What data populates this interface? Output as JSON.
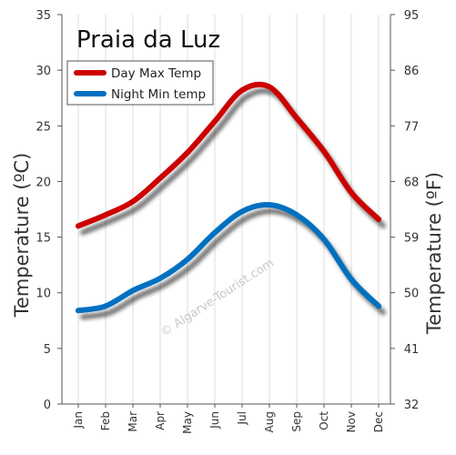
{
  "chart_data": {
    "type": "line",
    "title": "Praia da Luz",
    "categories": [
      "Jan",
      "Feb",
      "Mar",
      "Apr",
      "May",
      "Jun",
      "Jul",
      "Aug",
      "Sep",
      "Oct",
      "Nov",
      "Dec"
    ],
    "series": [
      {
        "name": "Day Max Temp",
        "color": "#cc0000",
        "values": [
          16,
          17,
          18.2,
          20.3,
          22.6,
          25.4,
          28.2,
          28.5,
          25.7,
          22.7,
          19,
          16.6
        ]
      },
      {
        "name": "Night Min temp",
        "color": "#0070c0",
        "values": [
          8.4,
          8.8,
          10.2,
          11.3,
          13,
          15.4,
          17.3,
          17.9,
          17,
          14.8,
          11.2,
          8.8
        ]
      }
    ],
    "ylabel": "Temperature   (ºC)",
    "ylim": [
      0,
      35
    ],
    "yticks": [
      "0",
      "5",
      "10",
      "15",
      "20",
      "25",
      "30",
      "35"
    ],
    "y2label": "Temperature  (ºF)",
    "y2ticks": [
      "32",
      "41",
      "50",
      "59",
      "68",
      "77",
      "86",
      "95"
    ],
    "legend_position": "top-left",
    "grid": "vertical",
    "watermark": "© Algarve-Tourist.com"
  }
}
